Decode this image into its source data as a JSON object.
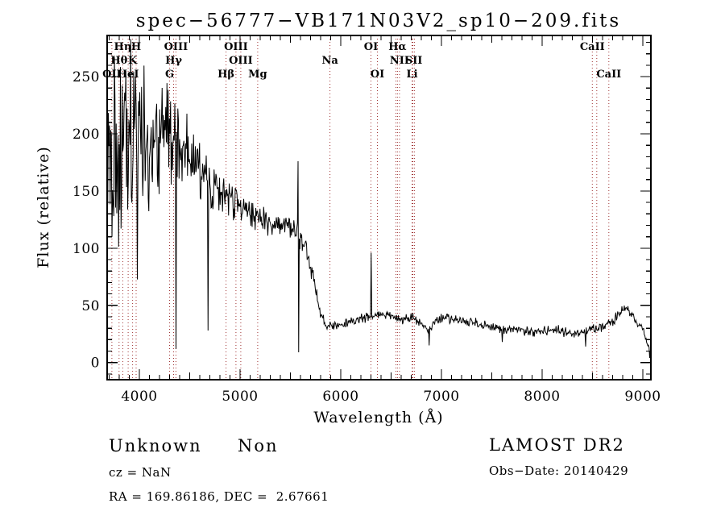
{
  "footer": {
    "class_label": "Unknown",
    "subclass_label": "Non",
    "cz": "cz = NaN",
    "radec": "RA = 169.86186, DEC =  2.67661",
    "survey": "LAMOST DR2",
    "obs_date": "Obs−Date: 20140429"
  },
  "chart_data": {
    "type": "line",
    "title": "spec−56777−VB171N03V2_sp10−209.fits",
    "xlabel": "Wavelength (Å)",
    "ylabel": "Flux (relative)",
    "xlim": [
      3680,
      9080
    ],
    "ylim": [
      -15,
      286
    ],
    "x_major_ticks": [
      4000,
      5000,
      6000,
      7000,
      8000,
      9000
    ],
    "x_minor_step": 100,
    "y_major_ticks": [
      0,
      50,
      100,
      150,
      200,
      250
    ],
    "y_minor_step": 10,
    "grid": false,
    "legend": null,
    "line_color": "#000000",
    "marker_color": "#a03333",
    "background": "#ffffff",
    "noise_seed": 12345,
    "sample_step": 6,
    "marker_wavelengths": [
      3727,
      3798,
      3835,
      3889,
      3933,
      3968,
      4300,
      4340,
      4363,
      4861,
      4959,
      5007,
      5175,
      5893,
      6300,
      6364,
      6548,
      6563,
      6583,
      6708,
      6716,
      6731,
      8498,
      8542,
      8662
    ],
    "spectral_lines": [
      {
        "label": "Hη",
        "wl": 3835,
        "row": 1
      },
      {
        "label": "H",
        "wl": 3968,
        "row": 1
      },
      {
        "label": "OIII",
        "wl": 4363,
        "row": 1
      },
      {
        "label": "OIII",
        "wl": 4959,
        "row": 1
      },
      {
        "label": "OI",
        "wl": 6300,
        "row": 1
      },
      {
        "label": "Hα",
        "wl": 6563,
        "row": 1
      },
      {
        "label": "CaII",
        "wl": 8498,
        "row": 1
      },
      {
        "label": "Hθ",
        "wl": 3798,
        "row": 2
      },
      {
        "label": "K",
        "wl": 3933,
        "row": 2
      },
      {
        "label": "Hγ",
        "wl": 4340,
        "row": 2
      },
      {
        "label": "OIII",
        "wl": 5007,
        "row": 2
      },
      {
        "label": "Na",
        "wl": 5893,
        "row": 2
      },
      {
        "label": "NII",
        "wl": 6583,
        "row": 2
      },
      {
        "label": "SII",
        "wl": 6725,
        "row": 2
      },
      {
        "label": "OII",
        "wl": 3727,
        "row": 3
      },
      {
        "label": "HeI",
        "wl": 3889,
        "row": 3
      },
      {
        "label": "G",
        "wl": 4300,
        "row": 3
      },
      {
        "label": "Hβ",
        "wl": 4861,
        "row": 3
      },
      {
        "label": "Mg",
        "wl": 5175,
        "row": 3
      },
      {
        "label": "OI",
        "wl": 6364,
        "row": 3
      },
      {
        "label": "Li",
        "wl": 6708,
        "row": 3
      },
      {
        "label": "CaII",
        "wl": 8662,
        "row": 3
      }
    ],
    "continuum": [
      [
        3680,
        150,
        85
      ],
      [
        3760,
        170,
        88
      ],
      [
        3840,
        180,
        85
      ],
      [
        3920,
        190,
        82
      ],
      [
        4000,
        195,
        75
      ],
      [
        4080,
        192,
        70
      ],
      [
        4160,
        196,
        65
      ],
      [
        4240,
        200,
        62
      ],
      [
        4320,
        198,
        58
      ],
      [
        4400,
        192,
        52
      ],
      [
        4480,
        185,
        46
      ],
      [
        4560,
        172,
        40
      ],
      [
        4640,
        162,
        34
      ],
      [
        4720,
        154,
        30
      ],
      [
        4800,
        148,
        26
      ],
      [
        4880,
        144,
        22
      ],
      [
        4960,
        140,
        19
      ],
      [
        5040,
        134,
        17
      ],
      [
        5120,
        130,
        16
      ],
      [
        5200,
        126,
        15
      ],
      [
        5280,
        122,
        14
      ],
      [
        5360,
        118,
        14
      ],
      [
        5440,
        121,
        13
      ],
      [
        5520,
        118,
        13
      ],
      [
        5600,
        110,
        12
      ],
      [
        5680,
        92,
        10
      ],
      [
        5740,
        68,
        9
      ],
      [
        5790,
        46,
        7
      ],
      [
        5840,
        34,
        6
      ],
      [
        5920,
        31,
        5
      ],
      [
        6000,
        33,
        5
      ],
      [
        6080,
        36,
        5
      ],
      [
        6160,
        38,
        5
      ],
      [
        6240,
        39,
        5
      ],
      [
        6320,
        40,
        5
      ],
      [
        6400,
        42,
        5
      ],
      [
        6480,
        41,
        5
      ],
      [
        6560,
        39,
        5
      ],
      [
        6640,
        38,
        5
      ],
      [
        6720,
        39,
        5
      ],
      [
        6800,
        36,
        5
      ],
      [
        6870,
        27,
        4
      ],
      [
        6940,
        37,
        5
      ],
      [
        7020,
        40,
        5
      ],
      [
        7100,
        38,
        5
      ],
      [
        7180,
        37,
        5
      ],
      [
        7260,
        36,
        5
      ],
      [
        7340,
        35,
        5
      ],
      [
        7420,
        33,
        5
      ],
      [
        7500,
        31,
        5
      ],
      [
        7580,
        29,
        5
      ],
      [
        7660,
        28,
        5
      ],
      [
        7740,
        29,
        5
      ],
      [
        7820,
        28,
        5
      ],
      [
        7900,
        27,
        5
      ],
      [
        7980,
        27,
        5
      ],
      [
        8060,
        28,
        5
      ],
      [
        8140,
        29,
        5
      ],
      [
        8220,
        27,
        5
      ],
      [
        8300,
        25,
        5
      ],
      [
        8380,
        26,
        5
      ],
      [
        8460,
        28,
        5
      ],
      [
        8540,
        30,
        5
      ],
      [
        8620,
        32,
        5
      ],
      [
        8700,
        36,
        5
      ],
      [
        8780,
        44,
        6
      ],
      [
        8840,
        47,
        6
      ],
      [
        8900,
        41,
        5
      ],
      [
        8950,
        33,
        4
      ],
      [
        9000,
        30,
        4
      ],
      [
        9040,
        18,
        3
      ],
      [
        9080,
        8,
        2
      ]
    ],
    "spikes": [
      [
        4363,
        12
      ],
      [
        4683,
        28
      ],
      [
        5577,
        176
      ],
      [
        5584,
        9
      ],
      [
        6300,
        96
      ],
      [
        6880,
        15
      ],
      [
        7605,
        18
      ],
      [
        8430,
        14
      ],
      [
        9070,
        4
      ]
    ]
  }
}
